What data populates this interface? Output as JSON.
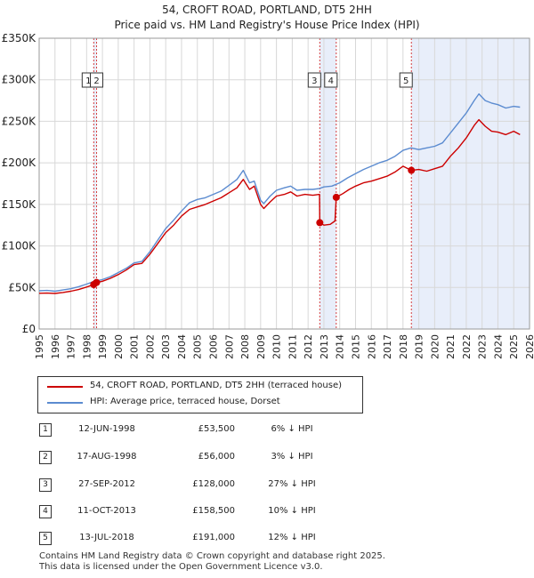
{
  "chart_data": {
    "type": "line",
    "title": "54, CROFT ROAD, PORTLAND, DT5 2HH",
    "subtitle": "Price paid vs. HM Land Registry's House Price Index (HPI)",
    "xlabel": "",
    "ylabel": "",
    "xlim": [
      1995,
      2026
    ],
    "ylim": [
      0,
      350000
    ],
    "x_ticks": [
      "1995",
      "1996",
      "1997",
      "1998",
      "1999",
      "2000",
      "2001",
      "2002",
      "2003",
      "2004",
      "2005",
      "2006",
      "2007",
      "2008",
      "2009",
      "2010",
      "2011",
      "2012",
      "2013",
      "2014",
      "2015",
      "2016",
      "2017",
      "2018",
      "2019",
      "2020",
      "2021",
      "2022",
      "2023",
      "2024",
      "2025",
      "2026"
    ],
    "y_ticks": [
      {
        "value": 0,
        "label": "£0"
      },
      {
        "value": 50000,
        "label": "£50K"
      },
      {
        "value": 100000,
        "label": "£100K"
      },
      {
        "value": 150000,
        "label": "£150K"
      },
      {
        "value": 200000,
        "label": "£200K"
      },
      {
        "value": 250000,
        "label": "£250K"
      },
      {
        "value": 300000,
        "label": "£300K"
      },
      {
        "value": 350000,
        "label": "£350K"
      }
    ],
    "series": [
      {
        "name": "54, CROFT ROAD, PORTLAND, DT5 2HH (terraced house)",
        "color": "#cc0000",
        "points": [
          [
            1995.0,
            43000
          ],
          [
            1995.5,
            43200
          ],
          [
            1996.0,
            42800
          ],
          [
            1996.5,
            44000
          ],
          [
            1997.0,
            45500
          ],
          [
            1997.5,
            47500
          ],
          [
            1998.0,
            50500
          ],
          [
            1998.45,
            53500
          ],
          [
            1998.63,
            56000
          ],
          [
            1999.0,
            57500
          ],
          [
            1999.5,
            61000
          ],
          [
            2000.0,
            65500
          ],
          [
            2000.5,
            71000
          ],
          [
            2001.0,
            77500
          ],
          [
            2001.5,
            79000
          ],
          [
            2002.0,
            90000
          ],
          [
            2002.5,
            103000
          ],
          [
            2003.0,
            116000
          ],
          [
            2003.5,
            125000
          ],
          [
            2004.0,
            136000
          ],
          [
            2004.5,
            144000
          ],
          [
            2005.0,
            147000
          ],
          [
            2005.5,
            150000
          ],
          [
            2006.0,
            154000
          ],
          [
            2006.5,
            158000
          ],
          [
            2007.0,
            164000
          ],
          [
            2007.5,
            170000
          ],
          [
            2007.9,
            180000
          ],
          [
            2008.3,
            168000
          ],
          [
            2008.6,
            172000
          ],
          [
            2009.0,
            150000
          ],
          [
            2009.2,
            145000
          ],
          [
            2009.6,
            153000
          ],
          [
            2010.0,
            160000
          ],
          [
            2010.5,
            162000
          ],
          [
            2010.9,
            165000
          ],
          [
            2011.3,
            160000
          ],
          [
            2011.8,
            162000
          ],
          [
            2012.3,
            161000
          ],
          [
            2012.72,
            162000
          ],
          [
            2012.74,
            128000
          ],
          [
            2013.0,
            125000
          ],
          [
            2013.4,
            126000
          ],
          [
            2013.7,
            130000
          ],
          [
            2013.78,
            158500
          ],
          [
            2014.2,
            163000
          ],
          [
            2014.6,
            168000
          ],
          [
            2015.0,
            172000
          ],
          [
            2015.5,
            176000
          ],
          [
            2016.0,
            178000
          ],
          [
            2016.5,
            181000
          ],
          [
            2017.0,
            184000
          ],
          [
            2017.5,
            189000
          ],
          [
            2018.0,
            196000
          ],
          [
            2018.53,
            191000
          ],
          [
            2019.0,
            192000
          ],
          [
            2019.5,
            190000
          ],
          [
            2020.0,
            193000
          ],
          [
            2020.5,
            196000
          ],
          [
            2021.0,
            208000
          ],
          [
            2021.5,
            218000
          ],
          [
            2022.0,
            230000
          ],
          [
            2022.5,
            245000
          ],
          [
            2022.8,
            252000
          ],
          [
            2023.2,
            244000
          ],
          [
            2023.6,
            238000
          ],
          [
            2024.0,
            237000
          ],
          [
            2024.5,
            234000
          ],
          [
            2025.0,
            238000
          ],
          [
            2025.4,
            234000
          ]
        ]
      },
      {
        "name": "HPI: Average price, terraced house, Dorset",
        "color": "#5b8bd0",
        "points": [
          [
            1995.0,
            46000
          ],
          [
            1995.5,
            46500
          ],
          [
            1996.0,
            45500
          ],
          [
            1996.5,
            47000
          ],
          [
            1997.0,
            48500
          ],
          [
            1997.5,
            51000
          ],
          [
            1998.0,
            54000
          ],
          [
            1998.5,
            57500
          ],
          [
            1999.0,
            59500
          ],
          [
            1999.5,
            63000
          ],
          [
            2000.0,
            68000
          ],
          [
            2000.5,
            73000
          ],
          [
            2001.0,
            79500
          ],
          [
            2001.5,
            81500
          ],
          [
            2002.0,
            93000
          ],
          [
            2002.5,
            107000
          ],
          [
            2003.0,
            121000
          ],
          [
            2003.5,
            131000
          ],
          [
            2004.0,
            142000
          ],
          [
            2004.5,
            152000
          ],
          [
            2005.0,
            156000
          ],
          [
            2005.5,
            158000
          ],
          [
            2006.0,
            162000
          ],
          [
            2006.5,
            166000
          ],
          [
            2007.0,
            173000
          ],
          [
            2007.5,
            180000
          ],
          [
            2007.9,
            191000
          ],
          [
            2008.3,
            176000
          ],
          [
            2008.6,
            178000
          ],
          [
            2009.0,
            155000
          ],
          [
            2009.2,
            151000
          ],
          [
            2009.6,
            160000
          ],
          [
            2010.0,
            167000
          ],
          [
            2010.5,
            170000
          ],
          [
            2010.9,
            172000
          ],
          [
            2011.3,
            167000
          ],
          [
            2011.8,
            168000
          ],
          [
            2012.3,
            168000
          ],
          [
            2012.7,
            169000
          ],
          [
            2013.0,
            171000
          ],
          [
            2013.5,
            172000
          ],
          [
            2014.0,
            176000
          ],
          [
            2014.5,
            182000
          ],
          [
            2015.0,
            187000
          ],
          [
            2015.5,
            192000
          ],
          [
            2016.0,
            196000
          ],
          [
            2016.5,
            200000
          ],
          [
            2017.0,
            203000
          ],
          [
            2017.5,
            208000
          ],
          [
            2018.0,
            215000
          ],
          [
            2018.5,
            218000
          ],
          [
            2019.0,
            216000
          ],
          [
            2019.5,
            218000
          ],
          [
            2020.0,
            220000
          ],
          [
            2020.5,
            224000
          ],
          [
            2021.0,
            236000
          ],
          [
            2021.5,
            248000
          ],
          [
            2022.0,
            260000
          ],
          [
            2022.5,
            275000
          ],
          [
            2022.8,
            283000
          ],
          [
            2023.2,
            275000
          ],
          [
            2023.6,
            272000
          ],
          [
            2024.0,
            270000
          ],
          [
            2024.5,
            266000
          ],
          [
            2025.0,
            268000
          ],
          [
            2025.4,
            267000
          ]
        ]
      }
    ],
    "sales": [
      {
        "id": "1",
        "x": 1998.45,
        "price": 53500
      },
      {
        "id": "2",
        "x": 1998.63,
        "price": 56000
      },
      {
        "id": "3",
        "x": 2012.74,
        "price": 128000
      },
      {
        "id": "4",
        "x": 2013.78,
        "price": 158500
      },
      {
        "id": "5",
        "x": 2018.53,
        "price": 191000
      }
    ],
    "shaded_ranges": [
      [
        1998.45,
        1998.63
      ],
      [
        2012.74,
        2013.78
      ],
      [
        2018.53,
        2026.0
      ]
    ]
  },
  "legend": {
    "property_label": "54, CROFT ROAD, PORTLAND, DT5 2HH (terraced house)",
    "hpi_label": "HPI: Average price, terraced house, Dorset"
  },
  "transactions": [
    {
      "num": "1",
      "date": "12-JUN-1998",
      "price": "£53,500",
      "hpi": "6% ↓ HPI"
    },
    {
      "num": "2",
      "date": "17-AUG-1998",
      "price": "£56,000",
      "hpi": "3% ↓ HPI"
    },
    {
      "num": "3",
      "date": "27-SEP-2012",
      "price": "£128,000",
      "hpi": "27% ↓ HPI"
    },
    {
      "num": "4",
      "date": "11-OCT-2013",
      "price": "£158,500",
      "hpi": "10% ↓ HPI"
    },
    {
      "num": "5",
      "date": "13-JUL-2018",
      "price": "£191,000",
      "hpi": "12% ↓ HPI"
    }
  ],
  "footer": {
    "line1": "Contains HM Land Registry data © Crown copyright and database right 2025.",
    "line2": "This data is licensed under the Open Government Licence v3.0."
  }
}
